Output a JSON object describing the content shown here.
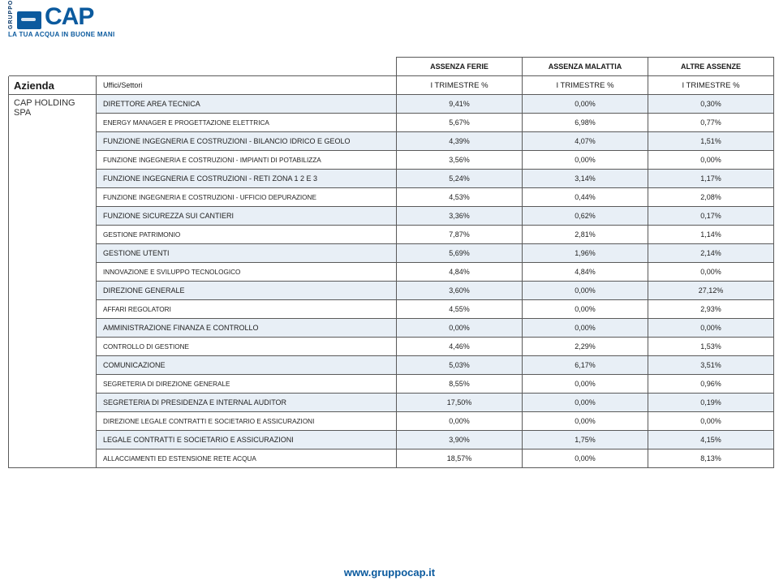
{
  "logo": {
    "gruppo": "GRUPPO",
    "brand": "CAP",
    "tagline": "LA TUA ACQUA IN BUONE MANI"
  },
  "footer_url": "www.gruppocap.it",
  "table": {
    "group_headers": [
      "ASSENZA FERIE",
      "ASSENZA MALATTIA",
      "ALTRE ASSENZE"
    ],
    "sub_headers": {
      "azienda": "Azienda",
      "uffici": "Uffici/Settori",
      "col": "I TRIMESTRE %"
    },
    "company": "CAP HOLDING SPA",
    "rows": [
      {
        "sector": "DIRETTORE AREA TECNICA",
        "big": true,
        "v": [
          "9,41%",
          "0,00%",
          "0,30%"
        ]
      },
      {
        "sector": "ENERGY MANAGER E PROGETTAZIONE ELETTRICA",
        "v": [
          "5,67%",
          "6,98%",
          "0,77%"
        ]
      },
      {
        "sector": "FUNZIONE INGEGNERIA E COSTRUZIONI -  BILANCIO IDRICO E GEOLO",
        "big": true,
        "v": [
          "4,39%",
          "4,07%",
          "1,51%"
        ]
      },
      {
        "sector": "FUNZIONE INGEGNERIA E COSTRUZIONI -  IMPIANTI DI POTABILIZZA",
        "v": [
          "3,56%",
          "0,00%",
          "0,00%"
        ]
      },
      {
        "sector": "FUNZIONE INGEGNERIA E COSTRUZIONI -  RETI ZONA 1 2 E 3",
        "big": true,
        "v": [
          "5,24%",
          "3,14%",
          "1,17%"
        ]
      },
      {
        "sector": "FUNZIONE INGEGNERIA E COSTRUZIONI -  UFFICIO DEPURAZIONE",
        "v": [
          "4,53%",
          "0,44%",
          "2,08%"
        ]
      },
      {
        "sector": "FUNZIONE SICUREZZA SUI CANTIERI",
        "big": true,
        "v": [
          "3,36%",
          "0,62%",
          "0,17%"
        ]
      },
      {
        "sector": "GESTIONE PATRIMONIO",
        "v": [
          "7,87%",
          "2,81%",
          "1,14%"
        ]
      },
      {
        "sector": "GESTIONE UTENTI",
        "big": true,
        "v": [
          "5,69%",
          "1,96%",
          "2,14%"
        ]
      },
      {
        "sector": "INNOVAZIONE E SVILUPPO TECNOLOGICO",
        "v": [
          "4,84%",
          "4,84%",
          "0,00%"
        ]
      },
      {
        "sector": "DIREZIONE GENERALE",
        "big": true,
        "v": [
          "3,60%",
          "0,00%",
          "27,12%"
        ]
      },
      {
        "sector": "AFFARI REGOLATORI",
        "v": [
          "4,55%",
          "0,00%",
          "2,93%"
        ]
      },
      {
        "sector": "AMMINISTRAZIONE  FINANZA E CONTROLLO",
        "big": true,
        "v": [
          "0,00%",
          "0,00%",
          "0,00%"
        ]
      },
      {
        "sector": "CONTROLLO DI GESTIONE",
        "v": [
          "4,46%",
          "2,29%",
          "1,53%"
        ]
      },
      {
        "sector": "COMUNICAZIONE",
        "big": true,
        "v": [
          "5,03%",
          "6,17%",
          "3,51%"
        ]
      },
      {
        "sector": "SEGRETERIA DI DIREZIONE GENERALE",
        "v": [
          "8,55%",
          "0,00%",
          "0,96%"
        ]
      },
      {
        "sector": "SEGRETERIA DI PRESIDENZA E INTERNAL AUDITOR",
        "big": true,
        "v": [
          "17,50%",
          "0,00%",
          "0,19%"
        ]
      },
      {
        "sector": "DIREZIONE LEGALE CONTRATTI E SOCIETARIO E ASSICURAZIONI",
        "v": [
          "0,00%",
          "0,00%",
          "0,00%"
        ]
      },
      {
        "sector": "LEGALE CONTRATTI E SOCIETARIO E ASSICURAZIONI",
        "big": true,
        "v": [
          "3,90%",
          "1,75%",
          "4,15%"
        ]
      },
      {
        "sector": "ALLACCIAMENTI ED ESTENSIONE RETE ACQUA",
        "v": [
          "18,57%",
          "0,00%",
          "8,13%"
        ]
      }
    ]
  },
  "colors": {
    "border": "#5a5a5a",
    "band": "#e8eff6",
    "brand": "#0b5a9e"
  }
}
